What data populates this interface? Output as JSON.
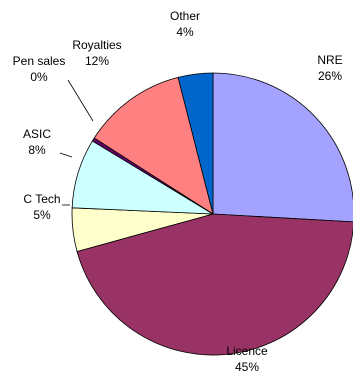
{
  "chart_data": {
    "type": "pie",
    "title": "",
    "unit": "%",
    "series": [
      {
        "values": [
          26,
          45,
          5,
          8,
          0.4,
          12,
          4
        ],
        "categories": [
          "NRE",
          "Licence",
          "C Tech",
          "ASIC",
          "Pen sales",
          "Royalties",
          "Other"
        ]
      }
    ],
    "slices": [
      {
        "label": "NRE",
        "value": 26,
        "display": "26%",
        "color": "#a3a3ff"
      },
      {
        "label": "Licence",
        "value": 45,
        "display": "45%",
        "color": "#993366"
      },
      {
        "label": "C Tech",
        "value": 5,
        "display": "5%",
        "color": "#ffffcc"
      },
      {
        "label": "ASIC",
        "value": 8,
        "display": "8%",
        "color": "#ccffff"
      },
      {
        "label": "Pen sales",
        "value": 0.4,
        "display": "0%",
        "color": "#660066"
      },
      {
        "label": "Royalties",
        "value": 12,
        "display": "12%",
        "color": "#ff8080"
      },
      {
        "label": "Other",
        "value": 4,
        "display": "4%",
        "color": "#0066cc"
      }
    ],
    "legend": "none",
    "label_style": "outside with leader lines"
  }
}
